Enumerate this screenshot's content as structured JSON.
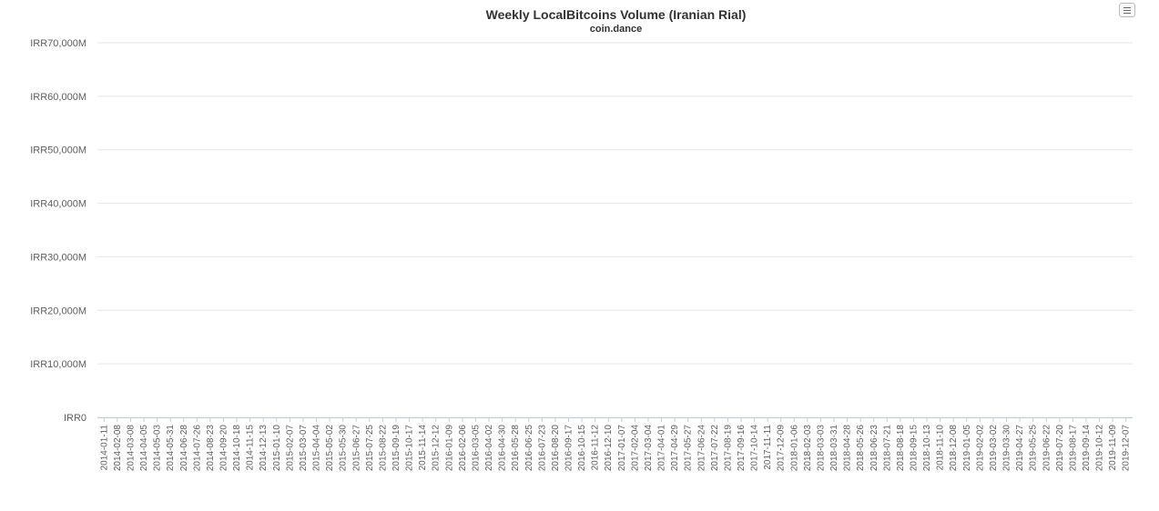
{
  "chart_data": {
    "type": "bar",
    "title": "Weekly LocalBitcoins Volume (Iranian Rial)",
    "subtitle": "coin.dance",
    "xlabel": "",
    "ylabel": "",
    "ylim": [
      0,
      70000000
    ],
    "yticks": [
      "IRR0",
      "IRR10,000M",
      "IRR20,000M",
      "IRR30,000M",
      "IRR40,000M",
      "IRR50,000M",
      "IRR60,000M",
      "IRR70,000M"
    ],
    "grid": true,
    "legend": "none",
    "bar_color": "#4d94e6",
    "x_tick_labels": [
      "2014-01-11",
      "2014-02-08",
      "2014-03-08",
      "2014-04-05",
      "2014-05-03",
      "2014-05-31",
      "2014-06-28",
      "2014-07-26",
      "2014-08-23",
      "2014-09-20",
      "2014-10-18",
      "2014-11-15",
      "2014-12-13",
      "2015-01-10",
      "2015-02-07",
      "2015-03-07",
      "2015-04-04",
      "2015-05-02",
      "2015-05-30",
      "2015-06-27",
      "2015-07-25",
      "2015-08-22",
      "2015-09-19",
      "2015-10-17",
      "2015-11-14",
      "2015-12-12",
      "2016-01-09",
      "2016-02-06",
      "2016-03-05",
      "2016-04-02",
      "2016-04-30",
      "2016-05-28",
      "2016-06-25",
      "2016-07-23",
      "2016-08-20",
      "2016-09-17",
      "2016-10-15",
      "2016-11-12",
      "2016-12-10",
      "2017-01-07",
      "2017-02-04",
      "2017-03-04",
      "2017-04-01",
      "2017-04-29",
      "2017-05-27",
      "2017-06-24",
      "2017-07-22",
      "2017-08-19",
      "2017-09-16",
      "2017-10-14",
      "2017-11-11",
      "2017-12-09",
      "2018-01-06",
      "2018-02-03",
      "2018-03-03",
      "2018-03-31",
      "2018-04-28",
      "2018-05-26",
      "2018-06-23",
      "2018-07-21",
      "2018-08-18",
      "2018-09-15",
      "2018-10-13",
      "2018-11-10",
      "2018-12-08",
      "2019-01-05",
      "2019-02-02",
      "2019-03-02",
      "2019-03-30",
      "2019-04-27",
      "2019-05-25",
      "2019-06-22",
      "2019-07-20",
      "2019-08-17",
      "2019-09-14",
      "2019-10-12",
      "2019-11-09",
      "2019-12-07"
    ],
    "series": [
      {
        "start_week": "2014-01-11",
        "values": [
          0,
          0,
          20,
          40,
          0,
          60,
          0,
          30,
          0,
          80,
          0,
          50,
          0,
          90,
          0,
          40,
          0,
          60,
          0,
          70,
          0,
          30,
          0,
          50,
          0,
          100,
          0,
          60,
          0,
          40,
          0,
          80,
          0,
          120,
          0,
          70,
          0,
          60,
          200,
          150,
          0,
          120,
          0,
          100,
          0,
          180,
          0,
          90,
          0,
          130,
          0,
          80,
          0,
          100,
          0,
          200,
          0,
          300,
          0,
          150,
          0,
          100,
          0,
          180,
          0,
          130,
          0,
          200,
          0,
          120,
          0,
          250,
          0,
          180,
          0,
          150,
          0,
          220,
          0,
          160,
          0,
          200,
          0,
          120,
          0,
          180,
          0,
          150,
          0,
          200,
          0,
          160,
          0,
          180,
          0,
          200,
          250,
          300,
          250,
          200,
          180,
          150,
          100,
          80,
          60,
          100,
          80,
          300,
          250,
          200,
          150,
          100,
          200,
          150,
          300,
          250,
          200,
          350,
          400,
          1500,
          300,
          200,
          180,
          250,
          300,
          200,
          250,
          350,
          400,
          3800,
          0,
          0,
          0,
          0,
          0,
          0,
          300,
          0,
          0,
          0,
          0,
          0,
          0,
          0,
          0,
          0,
          0,
          0,
          0,
          0,
          0,
          0,
          0,
          0,
          0,
          0,
          0,
          0,
          0,
          0,
          0,
          0,
          0,
          0,
          0,
          0,
          0,
          0,
          0,
          0,
          0,
          0,
          0,
          0,
          0,
          0,
          0,
          0,
          0,
          0,
          0,
          0,
          0,
          0,
          0,
          0,
          0,
          0,
          0,
          0,
          0,
          0,
          0,
          0,
          0,
          0,
          0,
          0,
          0,
          0,
          0,
          0,
          0,
          0,
          0,
          0,
          0,
          0,
          0,
          0,
          0,
          0,
          0,
          0,
          0,
          0,
          0,
          0,
          0,
          0,
          0,
          0,
          0,
          0,
          0,
          0,
          0,
          0,
          0,
          0,
          0,
          0,
          0,
          0,
          0,
          0,
          0,
          0,
          0,
          0,
          0,
          0,
          0,
          0,
          0,
          0,
          0,
          0,
          0,
          0,
          0,
          0,
          0,
          0,
          0,
          0,
          0,
          0,
          0,
          0,
          0,
          0,
          0,
          0,
          0,
          0,
          0,
          0,
          0,
          0,
          0,
          0,
          0,
          0,
          0,
          0,
          0,
          0,
          0,
          0,
          0,
          0,
          0,
          0,
          0,
          0,
          0,
          0,
          0,
          0,
          0,
          0,
          0,
          0,
          0,
          0,
          0,
          0,
          0,
          0
        ]
      }
    ]
  }
}
